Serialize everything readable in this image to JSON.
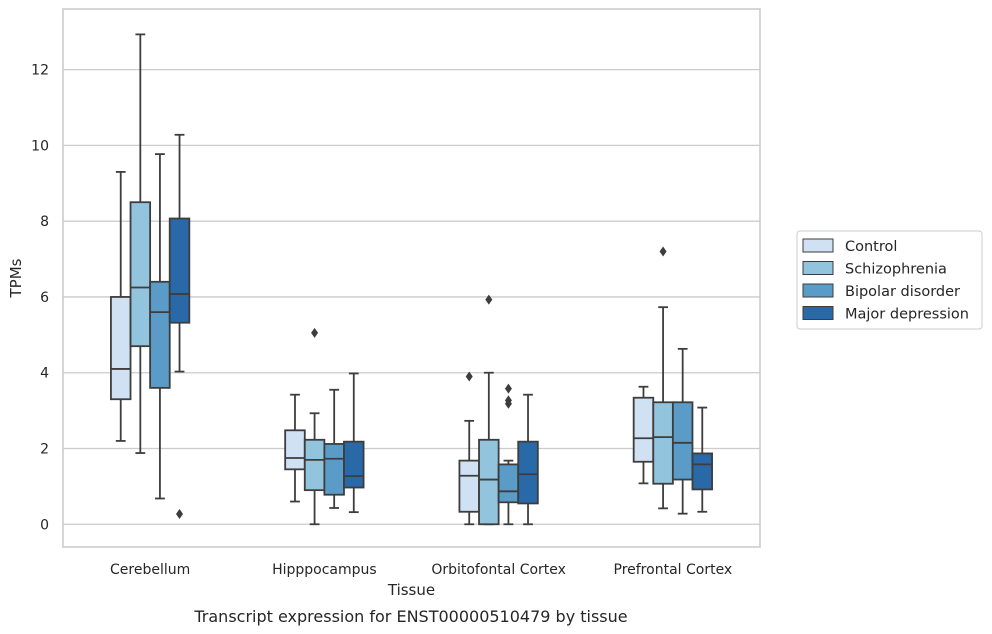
{
  "chart_data": {
    "type": "box",
    "xlabel": "Tissue",
    "ylabel": "TPMs",
    "caption": "Transcript expression for ENST00000510479 by tissue",
    "ylim": [
      -0.6,
      13.6
    ],
    "yticks": [
      0,
      2,
      4,
      6,
      8,
      10,
      12
    ],
    "grid": "horizontal",
    "legend_position": "right",
    "categories": [
      "Cerebellum",
      "Hipppocampus",
      "Orbitofontal Cortex",
      "Prefrontal Cortex"
    ],
    "series": [
      {
        "name": "Control",
        "color": "#cfe1f2",
        "boxes": [
          {
            "whislo": 2.2,
            "q1": 3.3,
            "med": 4.1,
            "q3": 6.0,
            "whishi": 9.3,
            "fliers": []
          },
          {
            "whislo": 0.6,
            "q1": 1.45,
            "med": 1.75,
            "q3": 2.48,
            "whishi": 3.42,
            "fliers": []
          },
          {
            "whislo": 0.0,
            "q1": 0.33,
            "med": 1.28,
            "q3": 1.68,
            "whishi": 2.73,
            "fliers": [
              3.9
            ]
          },
          {
            "whislo": 1.08,
            "q1": 1.65,
            "med": 2.27,
            "q3": 3.34,
            "whishi": 3.63,
            "fliers": []
          }
        ]
      },
      {
        "name": "Schizophrenia",
        "color": "#93c4de",
        "boxes": [
          {
            "whislo": 1.88,
            "q1": 4.7,
            "med": 6.25,
            "q3": 8.5,
            "whishi": 12.93,
            "fliers": []
          },
          {
            "whislo": 0.0,
            "q1": 0.9,
            "med": 1.7,
            "q3": 2.23,
            "whishi": 2.93,
            "fliers": [
              5.05
            ]
          },
          {
            "whislo": 0.0,
            "q1": 0.0,
            "med": 1.18,
            "q3": 2.23,
            "whishi": 4.0,
            "fliers": [
              5.93
            ]
          },
          {
            "whislo": 0.42,
            "q1": 1.07,
            "med": 2.3,
            "q3": 3.22,
            "whishi": 5.73,
            "fliers": [
              7.2
            ]
          }
        ]
      },
      {
        "name": "Bipolar disorder",
        "color": "#5a9bc8",
        "boxes": [
          {
            "whislo": 0.68,
            "q1": 3.6,
            "med": 5.6,
            "q3": 6.4,
            "whishi": 9.77,
            "fliers": []
          },
          {
            "whislo": 0.43,
            "q1": 0.78,
            "med": 1.73,
            "q3": 2.12,
            "whishi": 3.55,
            "fliers": []
          },
          {
            "whislo": 0.0,
            "q1": 0.58,
            "med": 0.87,
            "q3": 1.58,
            "whishi": 1.68,
            "fliers": [
              3.58,
              3.27,
              3.18
            ]
          },
          {
            "whislo": 0.28,
            "q1": 1.18,
            "med": 2.15,
            "q3": 3.22,
            "whishi": 4.63,
            "fliers": []
          }
        ]
      },
      {
        "name": "Major depression",
        "color": "#2a69a8",
        "boxes": [
          {
            "whislo": 4.03,
            "q1": 5.32,
            "med": 6.08,
            "q3": 8.07,
            "whishi": 10.28,
            "fliers": [
              0.27
            ]
          },
          {
            "whislo": 0.32,
            "q1": 0.97,
            "med": 1.27,
            "q3": 2.18,
            "whishi": 3.98,
            "fliers": []
          },
          {
            "whislo": 0.0,
            "q1": 0.55,
            "med": 1.32,
            "q3": 2.18,
            "whishi": 3.42,
            "fliers": []
          },
          {
            "whislo": 0.33,
            "q1": 0.92,
            "med": 1.58,
            "q3": 1.87,
            "whishi": 3.08,
            "fliers": []
          }
        ]
      }
    ]
  }
}
